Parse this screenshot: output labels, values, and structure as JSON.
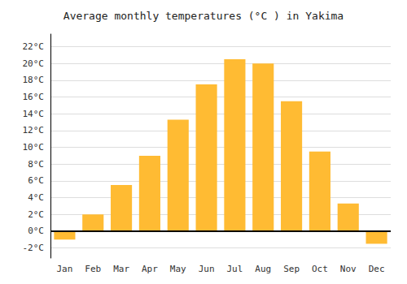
{
  "chart_data": {
    "type": "bar",
    "title": "Average monthly temperatures (°C ) in Yakima",
    "categories": [
      "Jan",
      "Feb",
      "Mar",
      "Apr",
      "May",
      "Jun",
      "Jul",
      "Aug",
      "Sep",
      "Oct",
      "Nov",
      "Dec"
    ],
    "values": [
      -1.0,
      2.0,
      5.5,
      9.0,
      13.3,
      17.5,
      20.5,
      20.0,
      15.5,
      9.5,
      3.3,
      -1.5
    ],
    "color": "#FFBB33",
    "ylim": [
      -3.2,
      23.5
    ],
    "yticks": [
      {
        "value": -2,
        "label": "-2°C"
      },
      {
        "value": 0,
        "label": "0°C"
      },
      {
        "value": 2,
        "label": "2°C"
      },
      {
        "value": 4,
        "label": "4°C"
      },
      {
        "value": 6,
        "label": "6°C"
      },
      {
        "value": 8,
        "label": "8°C"
      },
      {
        "value": 10,
        "label": "10°C"
      },
      {
        "value": 12,
        "label": "12°C"
      },
      {
        "value": 14,
        "label": "14°C"
      },
      {
        "value": 16,
        "label": "16°C"
      },
      {
        "value": 18,
        "label": "18°C"
      },
      {
        "value": 20,
        "label": "20°C"
      },
      {
        "value": 22,
        "label": "22°C"
      }
    ],
    "grid": true
  }
}
